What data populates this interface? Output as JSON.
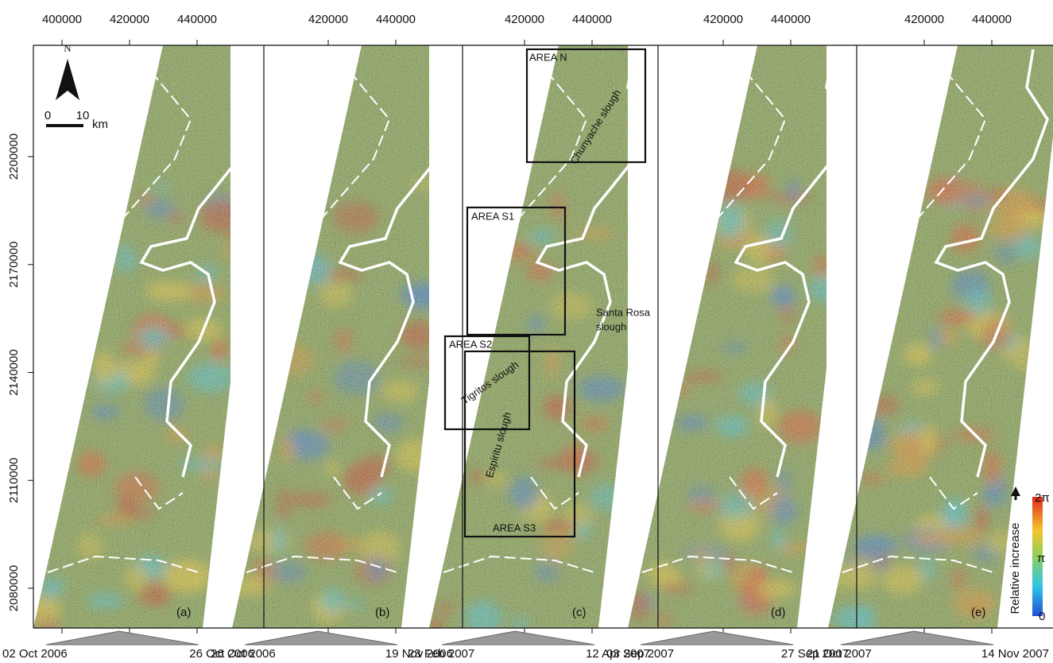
{
  "panels": [
    {
      "label": "(a)",
      "x_ticks": [
        400000,
        420000,
        440000
      ],
      "dates": [
        "02 Oct 2006",
        "26 Oct 2006"
      ]
    },
    {
      "label": "(b)",
      "x_ticks": [
        420000,
        440000
      ],
      "dates": [
        "26 Oct 2006",
        "19 Nov 2006"
      ]
    },
    {
      "label": "(c)",
      "x_ticks": [
        420000,
        440000
      ],
      "dates": [
        "23 Feb 2007",
        "12 Apr 2007"
      ]
    },
    {
      "label": "(d)",
      "x_ticks": [
        420000,
        440000
      ],
      "dates": [
        "03 Sep 2007",
        "27 Sep 2007"
      ]
    },
    {
      "label": "(e)",
      "x_ticks": [
        420000,
        440000
      ],
      "dates": [
        "21 Oct 2007",
        "14 Nov 2007"
      ]
    }
  ],
  "y_ticks": [
    2200000,
    2170000,
    2140000,
    2110000,
    2080000
  ],
  "north_label": "N",
  "scale": {
    "start": 0,
    "end": 10,
    "unit": "km"
  },
  "areas": [
    "AREA N",
    "AREA S1",
    "AREA S2",
    "AREA S3"
  ],
  "sloughs": {
    "chunyache": "Chunyache slough",
    "santa_rosa": [
      "Santa Rosa",
      "slough"
    ],
    "tigritos": "Tigritos slough",
    "espiritu": "Espiritu slough"
  },
  "colorbar": {
    "title": "Relative increase",
    "labels": [
      "2π",
      "π",
      "0"
    ]
  }
}
